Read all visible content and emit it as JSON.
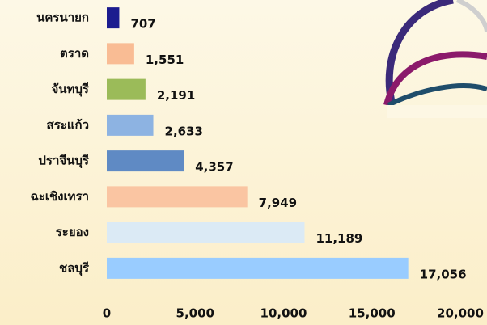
{
  "chart_data": {
    "type": "bar",
    "orientation": "horizontal",
    "categories": [
      "นครนายก",
      "ตราด",
      "จันทบุรี",
      "สระแก้ว",
      "ปราจีนบุรี",
      "ฉะเชิงเทรา",
      "ระยอง",
      "ชลบุรี"
    ],
    "values": [
      707,
      1551,
      2191,
      2633,
      4357,
      7949,
      11189,
      17056
    ],
    "value_labels": [
      "707",
      "1,551",
      "2,191",
      "2,633",
      "4,357",
      "7,949",
      "11,189",
      "17,056"
    ],
    "colors": [
      "#1c1c8f",
      "#f9bc94",
      "#9bbb59",
      "#8db3e2",
      "#5f8ac4",
      "#fac5a2",
      "#dbeaf5",
      "#99ccff"
    ],
    "xlim": [
      0,
      20000
    ],
    "xticks": [
      0,
      {
        "value": 5000,
        "label": "5,000"
      },
      {
        "value": 10000,
        "label": "10,000"
      },
      {
        "value": 15000,
        "label": "15,000"
      },
      {
        "value": 20000,
        "label": "20,000"
      }
    ]
  }
}
